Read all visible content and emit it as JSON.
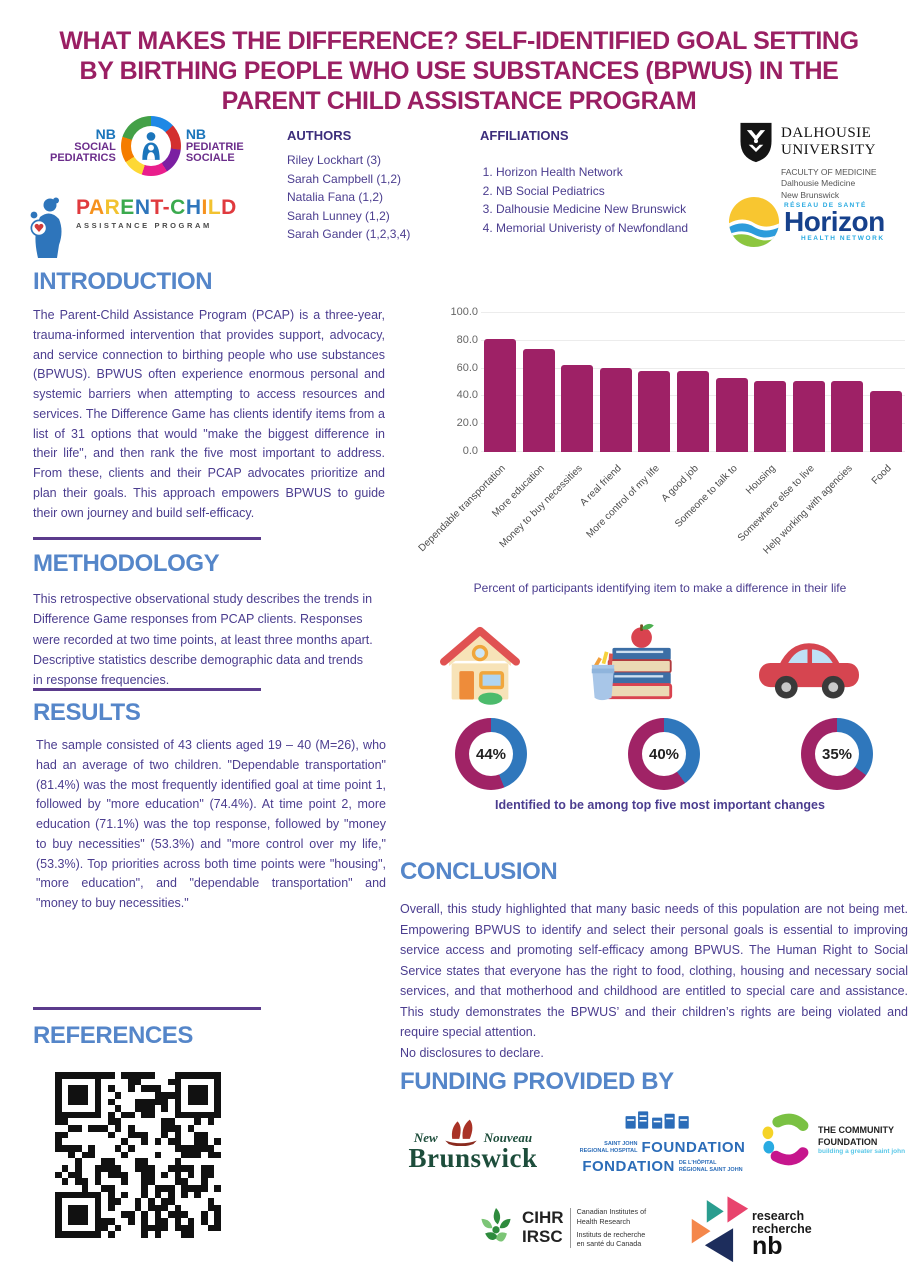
{
  "title": "WHAT MAKES THE DIFFERENCE? SELF-IDENTIFIED GOAL SETTING BY BIRTHING PEOPLE WHO USE SUBSTANCES (BPWUS) IN THE PARENT CHILD ASSISTANCE PROGRAM",
  "header": {
    "nb_logo": {
      "en1": "NB",
      "en2": "SOCIAL",
      "en3": "PEDIATRICS",
      "fr1": "NB",
      "fr2": "PEDIATRIE",
      "fr3": "SOCIALE"
    },
    "pcap_logo": {
      "name": "PARENT-CHILD",
      "subtitle": "ASSISTANCE PROGRAM",
      "letter_colors": [
        "#E03A3E",
        "#F6921E",
        "#F2C230",
        "#3BAA4E",
        "#2E75BB",
        "#E03A3E",
        "#E03A3E",
        "#3BAA4E",
        "#2E75BB",
        "#F6921E",
        "#F2C230",
        "#E03A3E"
      ]
    },
    "authors": {
      "heading": "AUTHORS",
      "list": [
        "Riley Lockhart (3)",
        "Sarah Campbell (1,2)",
        "Natalia Fana (1,2)",
        "Sarah Lunney (1,2)",
        "Sarah Gander (1,2,3,4)"
      ]
    },
    "affiliations": {
      "heading": "AFFILIATIONS",
      "list": [
        "Horizon Health Network",
        "NB Social Pediatrics",
        "Dalhousie Medicine New Brunswick",
        "Memorial Univeristy of Newfondland"
      ]
    },
    "dalhousie_logo": {
      "name1": "DALHOUSIE",
      "name2": "UNIVERSITY",
      "sub1": "FACULTY OF MEDICINE",
      "sub2": "Dalhousie Medicine",
      "sub3": "New Brunswick"
    },
    "horizon_logo": {
      "top": "RÉSEAU DE SANTÉ",
      "name": "Horizon",
      "bottom": "HEALTH NETWORK"
    }
  },
  "introduction": {
    "heading": "INTRODUCTION",
    "body": "The Parent-Child Assistance Program (PCAP) is a three-year, trauma-informed intervention that provides support, advocacy, and service connection to birthing people who use substances (BPWUS). BPWUS often experience enormous personal and systemic barriers when attempting to access resources and services. The Difference Game has clients identify items from a list of 31 options that would \"make the biggest difference in their life\", and then rank the five most important to address. From these, clients and their PCAP advocates prioritize and plan their goals. This approach empowers BPWUS to guide their own journey and build self-efficacy."
  },
  "methodology": {
    "heading": "METHODOLOGY",
    "body": "This retrospective observational study describes the trends in Difference Game responses from PCAP clients. Responses were recorded at two time points, at least three months apart. Descriptive statistics describe demographic data and trends in response frequencies."
  },
  "results": {
    "heading": "RESULTS",
    "body": "The sample consisted of 43 clients aged 19 – 40 (M=26), who had an average of two children. \"Dependable transportation\" (81.4%) was the most frequently identified goal at time point 1, followed by \"more education\" (74.4%). At time point 2, more education (71.1%) was the top response, followed by \"money to buy necessities\" (53.3%) and \"more control over my life,\" (53.3%). Top priorities across both time points were \"housing\", \"more education\", and \"dependable transportation\" and \"money to buy necessities.\""
  },
  "conclusion": {
    "heading": "CONCLUSION",
    "body": "Overall, this study highlighted that many basic needs of this population are not being met. Empowering BPWUS to identify and select their personal goals is essential to improving service access and promoting self-efficacy among BPWUS. The Human Right to Social Service states that everyone has the right to food, clothing, housing and necessary social services, and that motherhood and childhood are entitled to special care and assistance. This study demonstrates the BPWUS’ and their children’s rights are being violated and require special attention.",
    "disclosure": "No disclosures to declare."
  },
  "references": {
    "heading": "REFERENCES"
  },
  "funding": {
    "heading": "FUNDING PROVIDED BY",
    "nb_gov": {
      "new": "New",
      "nouveau": "Nouveau",
      "brunswick": "Brunswick"
    },
    "sjrhf": {
      "small1": "SAINT JOHN",
      "small2": "REGIONAL HOSPITAL",
      "big1": "FOUNDATION",
      "big2": "FONDATION",
      "small3": "DE L'HÔPITAL",
      "small4": "RÉGIONAL SAINT JOHN"
    },
    "community": {
      "line1": "THE COMMUNITY",
      "line2": "FOUNDATION",
      "tagline": "building a greater saint john"
    },
    "cihr": {
      "abbr1": "CIHR",
      "abbr2": "IRSC",
      "en1": "Canadian Institutes of",
      "en2": "Health Research",
      "fr1": "Instituts de recherche",
      "fr2": "en santé du Canada"
    },
    "rnb": {
      "line1": "research",
      "line2": "recherche",
      "abbr": "nb"
    }
  },
  "chart_data": {
    "type": "bar",
    "caption": "Percent of participants identifying item to make a difference in their life",
    "categories": [
      "Dependable transportation",
      "More education",
      "Money to buy necessities",
      "A real friend",
      "More control of my life",
      "A good job",
      "Someone to talk to",
      "Housing",
      "Somewhere else to live",
      "Help working with agencies",
      "Food"
    ],
    "values": [
      81.4,
      74.4,
      62.8,
      60.5,
      58.1,
      58.1,
      53.5,
      51.2,
      51.2,
      51.2,
      44.2
    ],
    "xlabel": "",
    "ylabel": "",
    "ylim": [
      0,
      100
    ],
    "yticks": [
      0,
      20,
      40,
      60,
      80,
      100
    ],
    "ytick_labels": [
      "0.0",
      "20.0",
      "40.0",
      "60.0",
      "80.0",
      "100.0"
    ],
    "grid": true,
    "legend": "none",
    "bar_color": "#9E2166"
  },
  "infographic": {
    "caption": "Identified to be among top five most important changes",
    "donut_filled_color": "#2F77BC",
    "donut_rest_color": "#A02366",
    "items": [
      {
        "icon": "house-icon",
        "topic": "housing",
        "label": "44%",
        "value": 44
      },
      {
        "icon": "books-icon",
        "topic": "education",
        "label": "40%",
        "value": 40
      },
      {
        "icon": "car-icon",
        "topic": "transportation",
        "label": "35%",
        "value": 35
      }
    ]
  },
  "colors": {
    "title": "#9A1F63",
    "section_heading": "#5586C9",
    "body_text": "#4B3D8F",
    "divider": "#5B3B8C"
  }
}
